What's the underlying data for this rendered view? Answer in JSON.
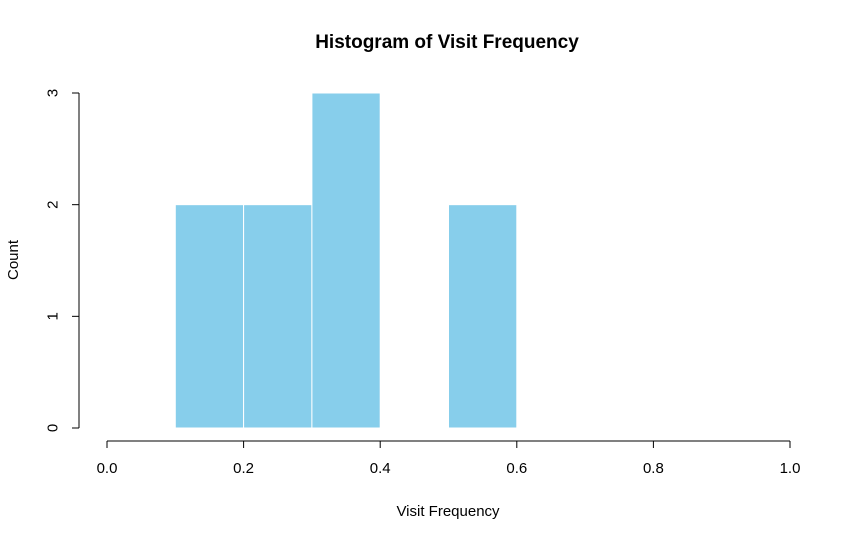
{
  "chart_data": {
    "type": "bar",
    "title": "Histogram of Visit Frequency",
    "xlabel": "Visit Frequency",
    "ylabel": "Count",
    "xlim": [
      0,
      1
    ],
    "ylim": [
      0,
      3
    ],
    "x_ticks": [
      "0.0",
      "0.2",
      "0.4",
      "0.6",
      "0.8",
      "1.0"
    ],
    "y_ticks": [
      "0",
      "1",
      "2",
      "3"
    ],
    "bin_width": 0.1,
    "bins": [
      {
        "start": 0.1,
        "end": 0.2,
        "count": 2
      },
      {
        "start": 0.2,
        "end": 0.3,
        "count": 2
      },
      {
        "start": 0.3,
        "end": 0.4,
        "count": 3
      },
      {
        "start": 0.4,
        "end": 0.5,
        "count": 0
      },
      {
        "start": 0.5,
        "end": 0.6,
        "count": 2
      }
    ],
    "bar_color": "#87CEEB",
    "bar_border_color": "#ffffff",
    "grid": false,
    "legend": "none"
  }
}
